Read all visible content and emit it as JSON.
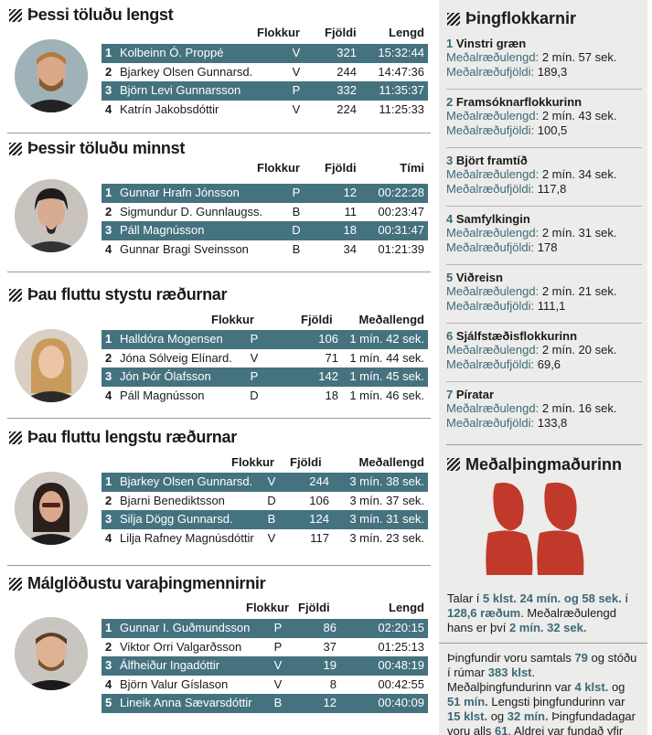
{
  "sections": [
    {
      "title": "Þessi töluðu lengst",
      "headers": [
        "Flokkur",
        "Fjöldi",
        "Lengd"
      ],
      "rows": [
        [
          "1",
          "Kolbeinn Ó. Proppé",
          "V",
          "321",
          "15:32:44"
        ],
        [
          "2",
          "Bjarkey Olsen Gunnarsd.",
          "V",
          "244",
          "14:47:36"
        ],
        [
          "3",
          "Björn Levi Gunnarsson",
          "P",
          "332",
          "11:35:37"
        ],
        [
          "4",
          "Katrín Jakobsdóttir",
          "V",
          "224",
          "11:25:33"
        ]
      ]
    },
    {
      "title": "Þessir töluðu minnst",
      "headers": [
        "Flokkur",
        "Fjöldi",
        "Tími"
      ],
      "rows": [
        [
          "1",
          "Gunnar Hrafn Jónsson",
          "P",
          "12",
          "00:22:28"
        ],
        [
          "2",
          "Sigmundur D. Gunnlaugss.",
          "B",
          "11",
          "00:23:47"
        ],
        [
          "3",
          "Páll Magnússon",
          "D",
          "18",
          "00:31:47"
        ],
        [
          "4",
          "Gunnar Bragi Sveinsson",
          "B",
          "34",
          "01:21:39"
        ]
      ]
    },
    {
      "title": "Þau fluttu stystu ræðurnar",
      "headers": [
        "Flokkur",
        "Fjöldi",
        "Meðallengd"
      ],
      "rows": [
        [
          "1",
          "Halldóra Mogensen",
          "P",
          "106",
          "1 mín. 42 sek."
        ],
        [
          "2",
          "Jóna Sólveig Elínard.",
          "V",
          "71",
          "1 mín. 44 sek."
        ],
        [
          "3",
          "Jón Þór Ólafsson",
          "P",
          "142",
          "1 mín. 45 sek."
        ],
        [
          "4",
          "Páll Magnússon",
          "D",
          "18",
          "1 mín. 46 sek."
        ]
      ]
    },
    {
      "title": "Þau fluttu lengstu ræðurnar",
      "headers": [
        "Flokkur",
        "Fjöldi",
        "Meðallengd"
      ],
      "rows": [
        [
          "1",
          "Bjarkey Olsen Gunnarsd.",
          "V",
          "244",
          "3 mín. 38 sek."
        ],
        [
          "2",
          "Bjarni Benediktsson",
          "D",
          "106",
          "3 mín. 37 sek."
        ],
        [
          "3",
          "Silja Dögg Gunnarsd.",
          "B",
          "124",
          "3 mín. 31 sek."
        ],
        [
          "4",
          "Lilja Rafney Magnúsdóttir",
          "V",
          "117",
          "3 mín. 23 sek."
        ]
      ]
    },
    {
      "title": "Málglöðustu varaþingmennirnir",
      "headers": [
        "Flokkur",
        "Fjöldi",
        "Lengd"
      ],
      "rows": [
        [
          "1",
          "Gunnar I. Guðmundsson",
          "P",
          "86",
          "02:20:15"
        ],
        [
          "2",
          "Viktor Orri Valgarðsson",
          "P",
          "37",
          "01:25:13"
        ],
        [
          "3",
          "Álfheiður Ingadóttir",
          "V",
          "19",
          "00:48:19"
        ],
        [
          "4",
          "Björn Valur Gíslason",
          "V",
          "8",
          "00:42:55"
        ],
        [
          "5",
          "Lineik Anna Sævarsdóttir",
          "B",
          "12",
          "00:40:09"
        ]
      ]
    }
  ],
  "sidebar": {
    "title": "Þingflokkarnir",
    "length_label": "Meðalræðulengd:",
    "count_label": "Meðalræðufjöldi:",
    "parties": [
      {
        "rank": "1",
        "name": "Vinstri græn",
        "length": "2 mín. 57 sek.",
        "count": "189,3"
      },
      {
        "rank": "2",
        "name": "Framsóknarflokkurinn",
        "length": "2 mín. 43 sek.",
        "count": "100,5"
      },
      {
        "rank": "3",
        "name": "Björt framtíð",
        "length": "2 mín. 34 sek.",
        "count": "117,8"
      },
      {
        "rank": "4",
        "name": "Samfylkingin",
        "length": "2 mín. 31 sek.",
        "count": "178"
      },
      {
        "rank": "5",
        "name": "Viðreisn",
        "length": "2 mín. 21 sek.",
        "count": "111,1"
      },
      {
        "rank": "6",
        "name": "Sjálfstæðisflokkurinn",
        "length": "2 mín. 20 sek.",
        "count": "69,6"
      },
      {
        "rank": "7",
        "name": "Píratar",
        "length": "2 mín. 16 sek.",
        "count": "133,8"
      }
    ],
    "avg_title": "Meðalþingmaðurinn",
    "avg_icon": "two-people-icon",
    "accent_color": "#c0392b",
    "para1": [
      "Talar í ",
      "5 klst. 24 mín. og 58 sek.",
      " í ",
      "128,6 ræðum",
      ". Meðalræðulengd hans er því ",
      "2 mín. 32 sek."
    ],
    "para2": [
      "Þingfundir voru samtals ",
      "79",
      " og stóðu í rúmar ",
      "383 klst",
      ". Meðalþingfundurinn var ",
      "4 klst.",
      " og ",
      "51 mín.",
      " Lengsti þingfundurinn var ",
      "15 klst.",
      " og ",
      "32 mín.",
      " Þingfundadagar voru alls ",
      "61",
      ". Aldrei var fundað yfir helgi."
    ]
  },
  "colors": {
    "row_dark": "#45727f",
    "accent_text": "#3b6a78",
    "sidebar_bg": "#ececea"
  }
}
